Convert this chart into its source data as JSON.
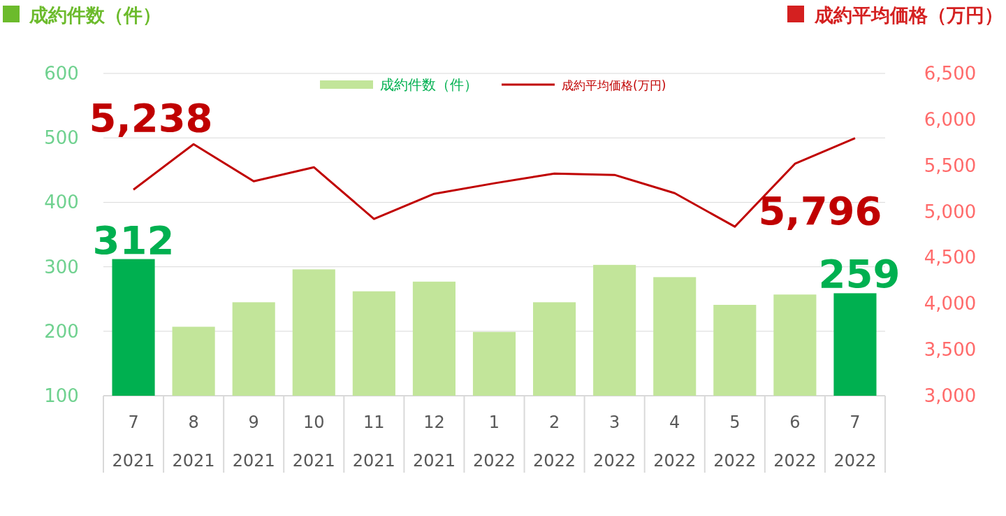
{
  "chart_data": {
    "type": "bar",
    "ylabel": "成約件数（件）",
    "y2label": "成約平均価格（万円）",
    "categories": [
      "7\n2021",
      "8\n2021",
      "9\n2021",
      "10\n2021",
      "11\n2021",
      "12\n2021",
      "1\n2022",
      "2\n2022",
      "3\n2022",
      "4\n2022",
      "5\n2022",
      "6\n2022",
      "7\n2022"
    ],
    "series": [
      {
        "name": "成約件数（件）",
        "color": "#c2e59a",
        "colors": [
          "#00b050",
          "#c2e59a",
          "#c2e59a",
          "#c2e59a",
          "#c2e59a",
          "#c2e59a",
          "#c2e59a",
          "#c2e59a",
          "#c2e59a",
          "#c2e59a",
          "#c2e59a",
          "#c2e59a",
          "#00b050"
        ],
        "values": [
          312,
          207,
          245,
          296,
          262,
          277,
          199,
          245,
          303,
          284,
          241,
          257,
          259
        ],
        "value_labels": [
          "312",
          null,
          null,
          null,
          null,
          null,
          null,
          null,
          null,
          null,
          null,
          null,
          "259"
        ]
      },
      {
        "name": "成約平均価格(万円)",
        "type": "line",
        "axis": "y2",
        "color": "#c00000",
        "values": [
          5238,
          5731,
          5329,
          5481,
          4920,
          5193,
          5307,
          5413,
          5398,
          5200,
          4836,
          5519,
          5796
        ],
        "value_labels": [
          "5,238",
          null,
          null,
          null,
          null,
          null,
          null,
          null,
          null,
          null,
          null,
          null,
          "5,796"
        ]
      }
    ],
    "ylim": [
      100,
      600
    ],
    "yticks": [
      100,
      200,
      300,
      400,
      500,
      600
    ],
    "y2lim": [
      3000,
      6500
    ],
    "y2ticks": [
      {
        "value": 3000,
        "label": "3,000"
      },
      {
        "value": 3500,
        "label": "3,500"
      },
      {
        "value": 4000,
        "label": "4,000"
      },
      {
        "value": 4500,
        "label": "4,500"
      },
      {
        "value": 5000,
        "label": "5,000"
      },
      {
        "value": 5500,
        "label": "5,500"
      },
      {
        "value": 6000,
        "label": "6,000"
      },
      {
        "value": 6500,
        "label": "6,500"
      }
    ],
    "grid": "y",
    "legend": "top",
    "marker": "none",
    "line_style": "solid"
  }
}
